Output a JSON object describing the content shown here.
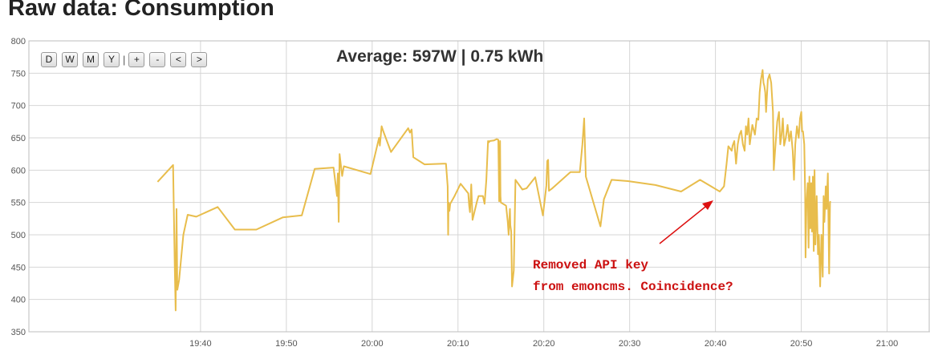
{
  "page": {
    "title": "Raw data: Consumption"
  },
  "toolbar": {
    "buttons": [
      {
        "label": "D"
      },
      {
        "label": "W"
      },
      {
        "label": "M"
      },
      {
        "label": "Y"
      },
      {
        "label": "|"
      },
      {
        "label": "+"
      },
      {
        "label": "-"
      },
      {
        "label": "<"
      },
      {
        "label": ">"
      }
    ]
  },
  "average": "Average: 597W | 0.75 kWh",
  "annotation": {
    "line1": "Removed API key",
    "line2": "from emoncms. Coincidence?"
  },
  "colors": {
    "series": "#e8bd4c",
    "grid": "#d6d6d6",
    "annotation": "#cc1111"
  },
  "chart_data": {
    "type": "line",
    "title": "",
    "xlabel": "",
    "ylabel": "",
    "grid": true,
    "xlim": [
      1160,
      1265
    ],
    "ylim": [
      350,
      800
    ],
    "x_ticks": [
      {
        "value": 1180,
        "label": "19:40"
      },
      {
        "value": 1190,
        "label": "19:50"
      },
      {
        "value": 1200,
        "label": "20:00"
      },
      {
        "value": 1210,
        "label": "20:10"
      },
      {
        "value": 1220,
        "label": "20:20"
      },
      {
        "value": 1230,
        "label": "20:30"
      },
      {
        "value": 1240,
        "label": "20:40"
      },
      {
        "value": 1250,
        "label": "20:50"
      },
      {
        "value": 1260,
        "label": "21:00"
      }
    ],
    "y_ticks": [
      350,
      400,
      450,
      500,
      550,
      600,
      650,
      700,
      750,
      800
    ],
    "series": [
      {
        "values": [
          [
            1175.0,
            582
          ],
          [
            1176.8,
            608
          ],
          [
            1177.0,
            450
          ],
          [
            1177.1,
            383
          ],
          [
            1177.2,
            540
          ],
          [
            1177.3,
            415
          ],
          [
            1177.5,
            430
          ],
          [
            1178.0,
            500
          ],
          [
            1178.5,
            531
          ],
          [
            1179.5,
            528
          ],
          [
            1182.0,
            543
          ],
          [
            1184.0,
            508
          ],
          [
            1186.5,
            508
          ],
          [
            1189.6,
            527
          ],
          [
            1191.8,
            530
          ],
          [
            1193.3,
            602
          ],
          [
            1195.5,
            604
          ],
          [
            1195.9,
            560
          ],
          [
            1196.0,
            595
          ],
          [
            1196.1,
            520
          ],
          [
            1196.2,
            625
          ],
          [
            1196.5,
            591
          ],
          [
            1196.7,
            606
          ],
          [
            1199.8,
            594
          ],
          [
            1200.8,
            650
          ],
          [
            1200.9,
            638
          ],
          [
            1201.1,
            668
          ],
          [
            1201.3,
            660
          ],
          [
            1202.2,
            628
          ],
          [
            1204.2,
            665
          ],
          [
            1204.4,
            658
          ],
          [
            1204.6,
            663
          ],
          [
            1204.8,
            620
          ],
          [
            1206.1,
            609
          ],
          [
            1208.3,
            610
          ],
          [
            1208.6,
            610
          ],
          [
            1208.8,
            575
          ],
          [
            1208.85,
            500
          ],
          [
            1208.9,
            550
          ],
          [
            1209.0,
            537
          ],
          [
            1209.1,
            548
          ],
          [
            1209.6,
            560
          ],
          [
            1210.3,
            579
          ],
          [
            1211.2,
            564
          ],
          [
            1211.3,
            545
          ],
          [
            1211.4,
            535
          ],
          [
            1211.55,
            578
          ],
          [
            1211.7,
            523
          ],
          [
            1212.2,
            551
          ],
          [
            1212.4,
            560
          ],
          [
            1212.9,
            560
          ],
          [
            1213.1,
            548
          ],
          [
            1213.3,
            585
          ],
          [
            1213.5,
            645
          ],
          [
            1213.6,
            643
          ],
          [
            1213.7,
            645
          ],
          [
            1214.2,
            646
          ],
          [
            1214.5,
            648
          ],
          [
            1214.7,
            647
          ],
          [
            1214.8,
            552
          ],
          [
            1214.9,
            645
          ],
          [
            1214.95,
            560
          ],
          [
            1215.0,
            550
          ],
          [
            1215.6,
            545
          ],
          [
            1215.8,
            520
          ],
          [
            1215.9,
            500
          ],
          [
            1216.05,
            540
          ],
          [
            1216.1,
            515
          ],
          [
            1216.2,
            505
          ],
          [
            1216.3,
            420
          ],
          [
            1216.5,
            445
          ],
          [
            1216.7,
            585
          ],
          [
            1217.5,
            570
          ],
          [
            1218.0,
            572
          ],
          [
            1219.0,
            589
          ],
          [
            1219.9,
            530
          ],
          [
            1220.3,
            576
          ],
          [
            1220.4,
            614
          ],
          [
            1220.5,
            616
          ],
          [
            1220.6,
            568
          ],
          [
            1221.0,
            572
          ],
          [
            1223.1,
            597
          ],
          [
            1224.2,
            597
          ],
          [
            1224.5,
            640
          ],
          [
            1224.7,
            680
          ],
          [
            1224.9,
            590
          ],
          [
            1226.6,
            513
          ],
          [
            1227.0,
            555
          ],
          [
            1227.9,
            585
          ],
          [
            1229.8,
            583
          ],
          [
            1233.0,
            577
          ],
          [
            1236.0,
            567
          ],
          [
            1238.2,
            585
          ],
          [
            1240.5,
            567
          ],
          [
            1241.0,
            575
          ],
          [
            1241.3,
            610
          ],
          [
            1241.5,
            637
          ],
          [
            1241.9,
            630
          ],
          [
            1242.0,
            638
          ],
          [
            1242.2,
            645
          ],
          [
            1242.4,
            610
          ],
          [
            1242.6,
            640
          ],
          [
            1242.8,
            655
          ],
          [
            1243.0,
            661
          ],
          [
            1243.2,
            640
          ],
          [
            1243.4,
            630
          ],
          [
            1243.55,
            668
          ],
          [
            1243.7,
            655
          ],
          [
            1243.85,
            680
          ],
          [
            1244.0,
            640
          ],
          [
            1244.3,
            670
          ],
          [
            1244.6,
            655
          ],
          [
            1244.8,
            680
          ],
          [
            1245.0,
            678
          ],
          [
            1245.15,
            720
          ],
          [
            1245.3,
            740
          ],
          [
            1245.5,
            755
          ],
          [
            1245.6,
            735
          ],
          [
            1245.7,
            730
          ],
          [
            1245.8,
            720
          ],
          [
            1245.9,
            690
          ],
          [
            1246.1,
            740
          ],
          [
            1246.3,
            748
          ],
          [
            1246.5,
            735
          ],
          [
            1246.7,
            690
          ],
          [
            1246.8,
            600
          ],
          [
            1247.0,
            640
          ],
          [
            1247.2,
            675
          ],
          [
            1247.4,
            690
          ],
          [
            1247.55,
            640
          ],
          [
            1247.7,
            655
          ],
          [
            1247.85,
            680
          ],
          [
            1248.0,
            638
          ],
          [
            1248.2,
            650
          ],
          [
            1248.4,
            670
          ],
          [
            1248.6,
            645
          ],
          [
            1248.8,
            660
          ],
          [
            1249.0,
            630
          ],
          [
            1249.15,
            585
          ],
          [
            1249.3,
            640
          ],
          [
            1249.5,
            668
          ],
          [
            1249.7,
            650
          ],
          [
            1249.85,
            680
          ],
          [
            1250.0,
            690
          ],
          [
            1250.1,
            660
          ],
          [
            1250.2,
            660
          ],
          [
            1250.35,
            640
          ],
          [
            1250.45,
            565
          ],
          [
            1250.5,
            465
          ],
          [
            1250.6,
            545
          ],
          [
            1250.75,
            580
          ],
          [
            1250.85,
            480
          ],
          [
            1250.95,
            590
          ],
          [
            1251.05,
            510
          ],
          [
            1251.15,
            580
          ],
          [
            1251.25,
            505
          ],
          [
            1251.35,
            590
          ],
          [
            1251.45,
            475
          ],
          [
            1251.55,
            600
          ],
          [
            1251.65,
            485
          ],
          [
            1251.8,
            560
          ],
          [
            1251.95,
            470
          ],
          [
            1252.05,
            500
          ],
          [
            1252.2,
            420
          ],
          [
            1252.35,
            500
          ],
          [
            1252.5,
            435
          ],
          [
            1252.6,
            560
          ],
          [
            1252.7,
            520
          ],
          [
            1252.85,
            575
          ],
          [
            1252.95,
            540
          ],
          [
            1253.1,
            595
          ],
          [
            1253.25,
            440
          ],
          [
            1253.35,
            550
          ],
          [
            1253.4,
            552
          ]
        ]
      }
    ]
  }
}
